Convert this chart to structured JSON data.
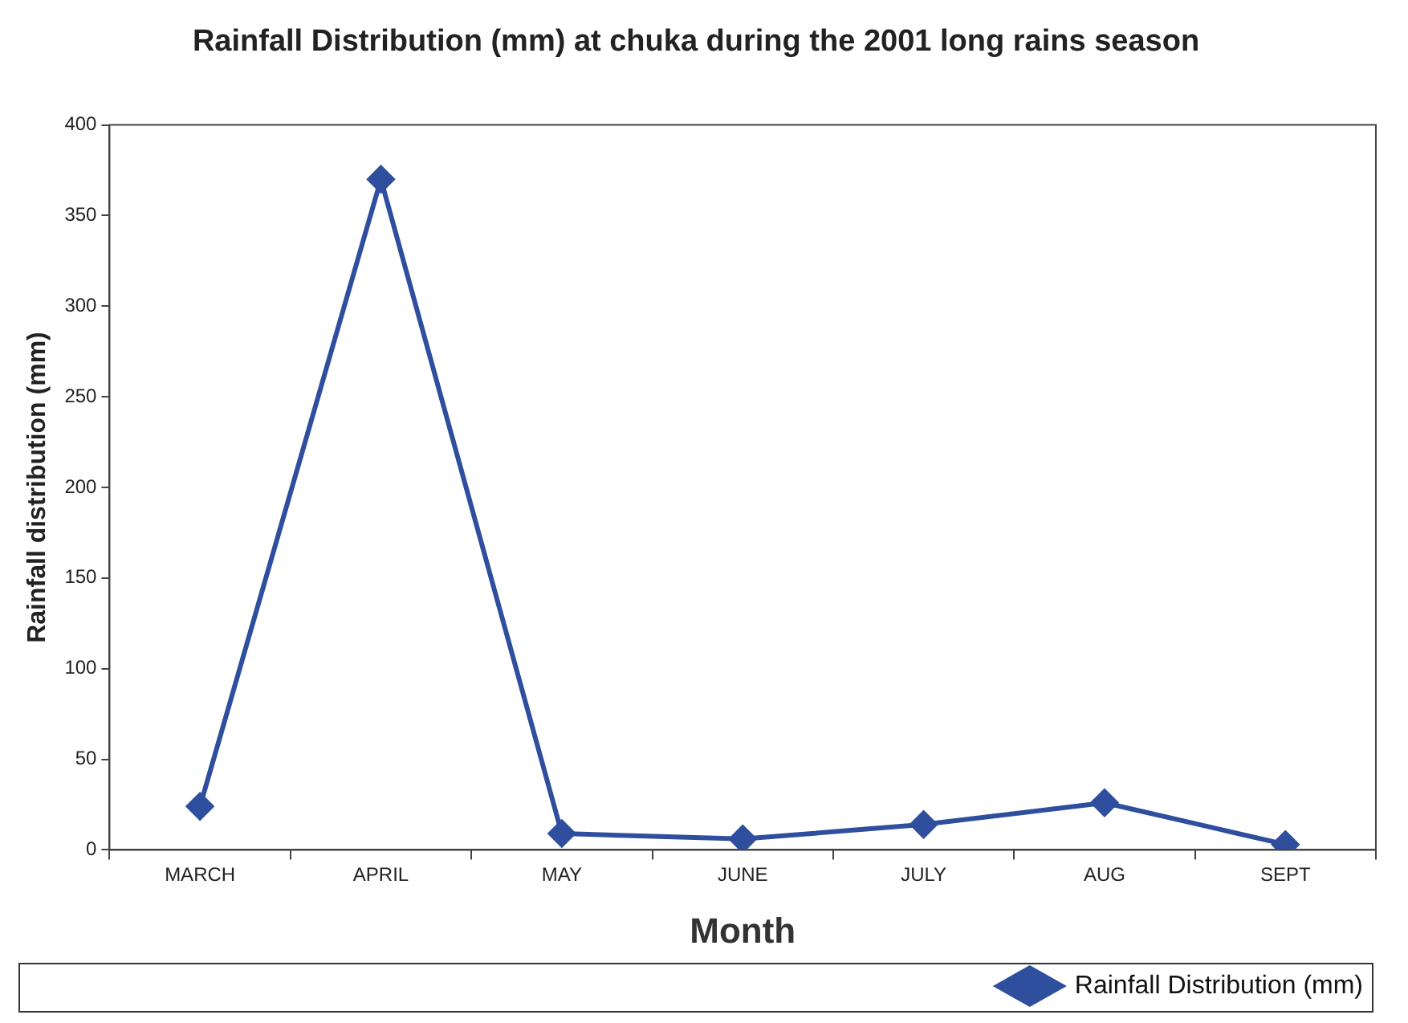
{
  "chart_data": {
    "type": "line",
    "title": "Rainfall Distribution (mm) at chuka during the 2001 long rains season",
    "xlabel": "Month",
    "ylabel": "Rainfall distribution (mm)",
    "categories": [
      "MARCH",
      "APRIL",
      "MAY",
      "JUNE",
      "JULY",
      "AUG",
      "SEPT"
    ],
    "series": [
      {
        "name": "Rainfall Distribution (mm)",
        "color": "#2f4f9e",
        "values": [
          24,
          370,
          9,
          6,
          14,
          26,
          3
        ]
      }
    ],
    "ylim": [
      0,
      400
    ],
    "yticks": [
      0,
      50,
      100,
      150,
      200,
      250,
      300,
      350,
      400
    ],
    "grid": false,
    "legend": "bottom right",
    "marker": "diamond",
    "line_style": "solid"
  }
}
